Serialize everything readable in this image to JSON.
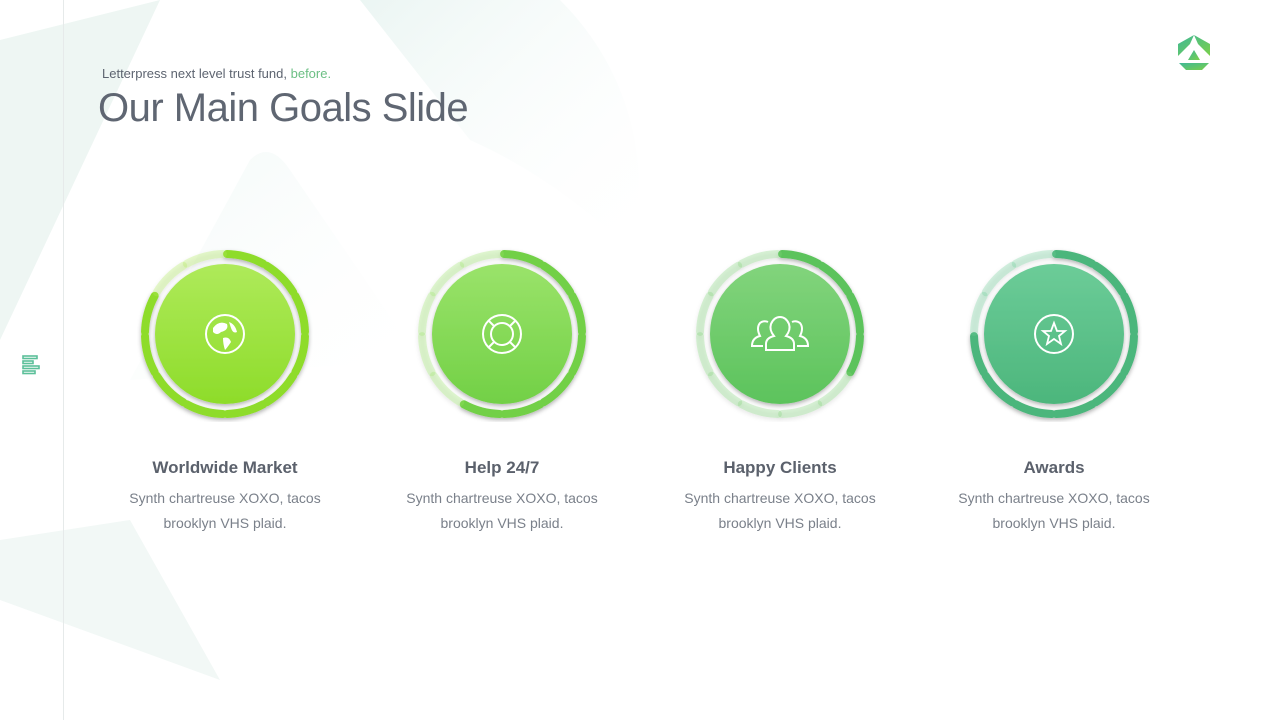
{
  "header": {
    "subtitle": "Letterpress next level trust fund,",
    "subtitle_accent": "before.",
    "title": "Our Main Goals Slide"
  },
  "colors": {
    "accent": "#6cbf84"
  },
  "goals": [
    {
      "title": "Worldwide Market",
      "text": "Synth chartreuse XOXO, tacos brooklyn VHS plaid.",
      "icon": "globe-icon",
      "progress": 0.833,
      "color_top": "#aeea5a",
      "color_bottom": "#8edc2a"
    },
    {
      "title": "Help 24/7",
      "text": "Synth chartreuse XOXO, tacos brooklyn VHS plaid.",
      "icon": "lifebuoy-icon",
      "progress": 0.583,
      "color_top": "#9ae36a",
      "color_bottom": "#72d046"
    },
    {
      "title": "Happy Clients",
      "text": "Synth chartreuse XOXO, tacos brooklyn VHS plaid.",
      "icon": "users-icon",
      "progress": 0.333,
      "color_top": "#82d47c",
      "color_bottom": "#5cc35c"
    },
    {
      "title": "Awards",
      "text": "Synth chartreuse XOXO, tacos brooklyn VHS plaid.",
      "icon": "star-badge-icon",
      "progress": 0.75,
      "color_top": "#6ccc98",
      "color_bottom": "#4cb67c"
    }
  ]
}
